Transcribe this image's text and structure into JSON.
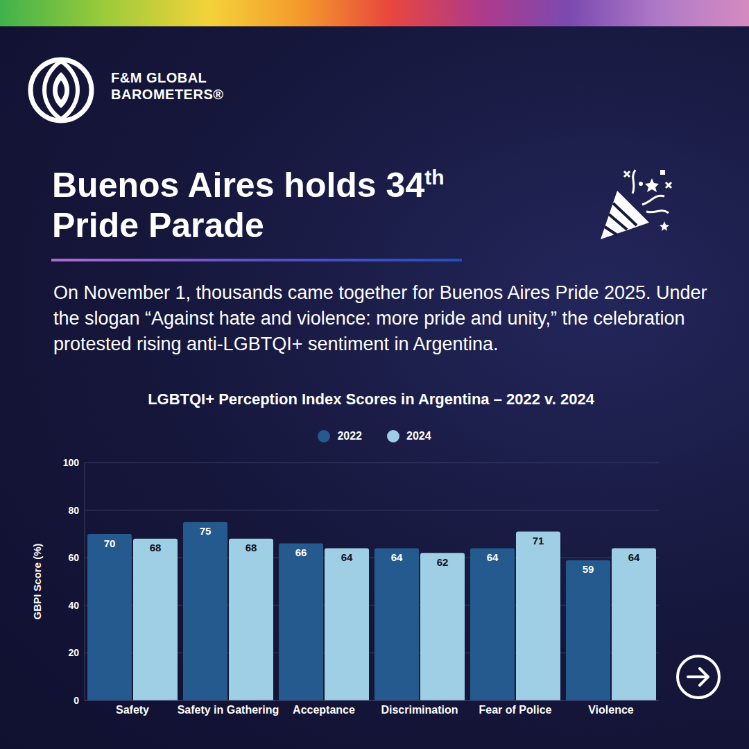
{
  "brand": [
    "F&M GLOBAL",
    "BAROMETERS®"
  ],
  "headline": {
    "before": "Buenos Aires holds 34",
    "superscript": "th",
    "after": "Pride Parade"
  },
  "body": "On November 1, thousands came together for Buenos Aires Pride 2025. Under the slogan “Against hate and violence: more pride and unity,” the celebration protested rising anti-LGBTQI+ sentiment in Argentina.",
  "chart_data": {
    "type": "bar",
    "title": "LGBTQI+ Perception Index Scores in Argentina – 2022 v. 2024",
    "y_label": "GBPI Score (%)",
    "categories": [
      "Safety",
      "Safety in Gathering",
      "Acceptance",
      "Discrimination",
      "Fear of Police",
      "Violence"
    ],
    "series": [
      {
        "name": "2022",
        "color": "#245a8e",
        "values": [
          70,
          75,
          66,
          64,
          64,
          59
        ]
      },
      {
        "name": "2024",
        "color": "#9ecfe4",
        "values": [
          68,
          68,
          64,
          62,
          71,
          64
        ]
      }
    ],
    "ylim": [
      0,
      100
    ],
    "yticks": [
      0,
      20,
      40,
      60,
      80,
      100
    ],
    "grid": true,
    "legend": "top",
    "data_labels": true
  }
}
